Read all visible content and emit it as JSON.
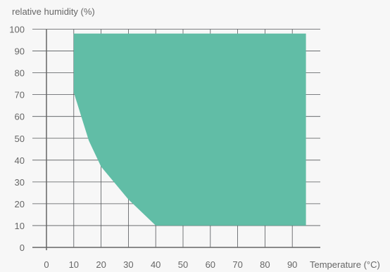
{
  "chart_data": {
    "type": "area",
    "title": "",
    "ylabel": "relative humidity (%)",
    "xlabel": "Temperature (°C)",
    "xlim": [
      0,
      100
    ],
    "ylim": [
      0,
      100
    ],
    "x_ticks": [
      0,
      10,
      20,
      30,
      40,
      50,
      60,
      70,
      80,
      90
    ],
    "y_ticks": [
      0,
      10,
      20,
      30,
      40,
      50,
      60,
      70,
      80,
      90,
      100
    ],
    "grid": true,
    "legend": "none",
    "colors": {
      "fill": "#61bda6",
      "grid": "#54575a",
      "axis": "#666666",
      "text": "#666666"
    },
    "region": [
      {
        "x": 10,
        "y": 98
      },
      {
        "x": 95,
        "y": 98
      },
      {
        "x": 95,
        "y": 10
      },
      {
        "x": 40,
        "y": 10
      },
      {
        "x": 30,
        "y": 22
      },
      {
        "x": 20,
        "y": 37
      },
      {
        "x": 15.5,
        "y": 49
      },
      {
        "x": 10,
        "y": 71
      }
    ]
  }
}
